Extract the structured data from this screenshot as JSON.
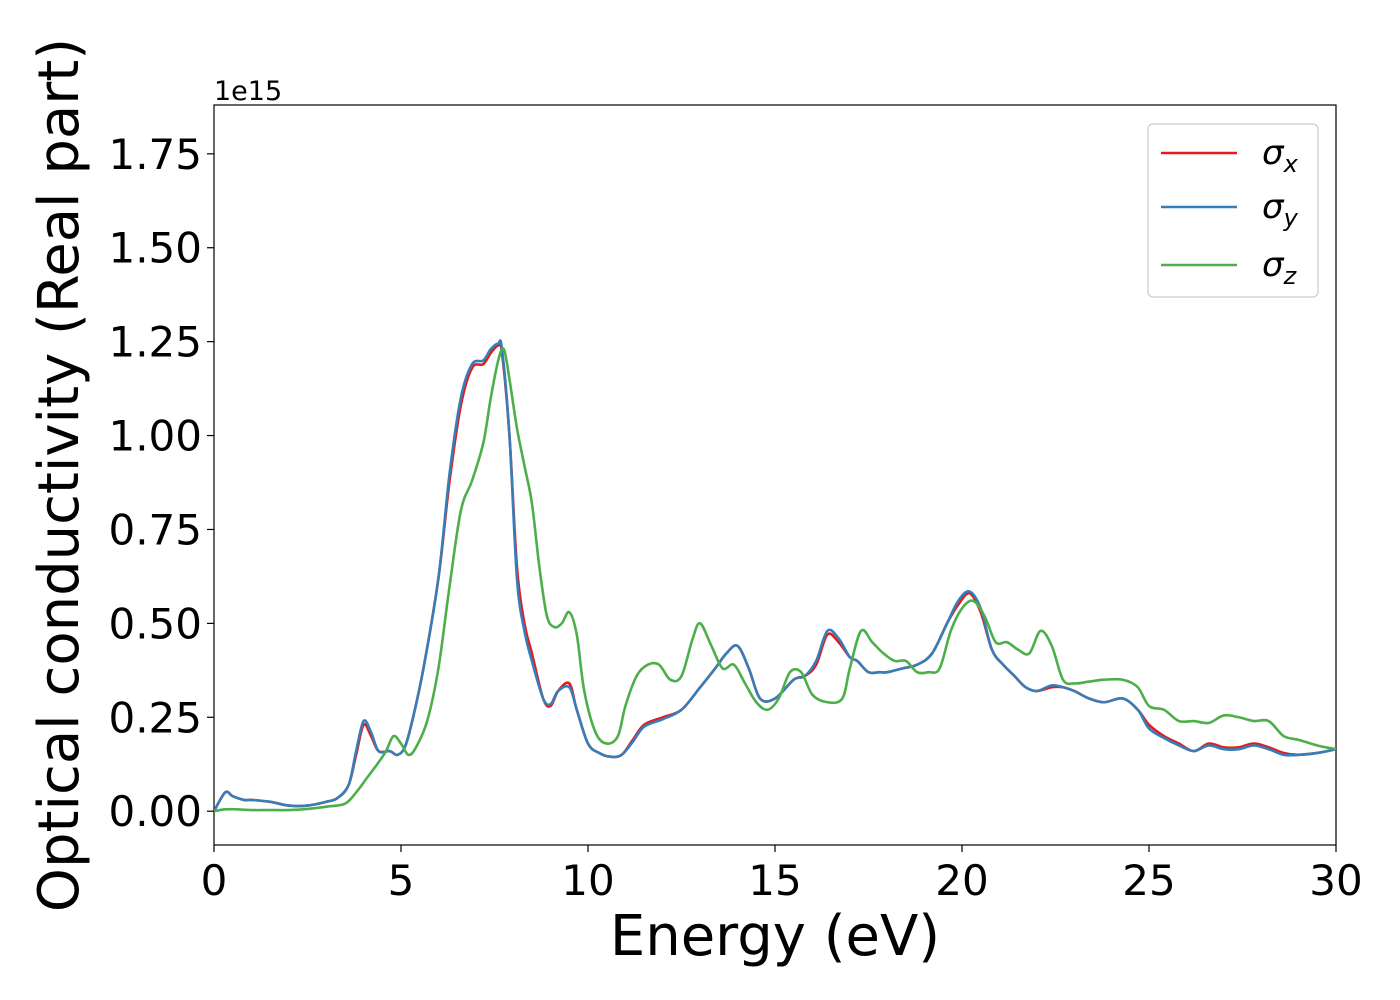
{
  "chart_data": {
    "type": "line",
    "xlabel": "Energy (eV)",
    "ylabel": "Optical conductivity (Real part)",
    "y_offset_text": "1e15",
    "xlim": [
      0,
      30
    ],
    "ylim": [
      -0.09,
      1.88
    ],
    "y_scale_factor": 1000000000000000.0,
    "grid": false,
    "legend_position": "top-right",
    "x_ticks": [
      0,
      5,
      10,
      15,
      20,
      25,
      30
    ],
    "x_tick_labels": [
      "0",
      "5",
      "10",
      "15",
      "20",
      "25",
      "30"
    ],
    "y_ticks": [
      0.0,
      0.25,
      0.5,
      0.75,
      1.0,
      1.25,
      1.5,
      1.75
    ],
    "y_tick_labels": [
      "0.00",
      "0.25",
      "0.50",
      "0.75",
      "1.00",
      "1.25",
      "1.50",
      "1.75"
    ],
    "series": [
      {
        "name": "σx",
        "legend_base": "σ",
        "legend_sub": "x",
        "color": "#e41a1c",
        "x": [
          0,
          0.3,
          0.5,
          0.8,
          1.0,
          1.5,
          2.0,
          2.5,
          3.0,
          3.3,
          3.6,
          3.8,
          4.0,
          4.2,
          4.4,
          4.7,
          4.9,
          5.1,
          5.3,
          5.6,
          6.0,
          6.3,
          6.6,
          6.9,
          7.2,
          7.4,
          7.6,
          7.7,
          7.9,
          8.1,
          8.3,
          8.5,
          8.8,
          9.0,
          9.2,
          9.5,
          9.7,
          10.0,
          10.3,
          10.6,
          10.9,
          11.2,
          11.5,
          12.0,
          12.5,
          13.0,
          13.4,
          13.7,
          14.0,
          14.3,
          14.6,
          15.0,
          15.5,
          15.8,
          16.1,
          16.4,
          16.7,
          17.0,
          17.2,
          17.5,
          17.8,
          18.0,
          18.4,
          18.8,
          19.2,
          19.6,
          19.9,
          20.2,
          20.5,
          20.8,
          21.1,
          21.4,
          21.7,
          22.0,
          22.4,
          22.7,
          23.0,
          23.4,
          23.8,
          24.3,
          24.7,
          25.0,
          25.4,
          25.8,
          26.2,
          26.6,
          27.0,
          27.4,
          27.8,
          28.2,
          28.6,
          29.0,
          29.5,
          30.0
        ],
        "y": [
          0.0,
          0.05,
          0.04,
          0.03,
          0.03,
          0.025,
          0.015,
          0.015,
          0.025,
          0.035,
          0.07,
          0.15,
          0.23,
          0.2,
          0.16,
          0.16,
          0.15,
          0.17,
          0.24,
          0.38,
          0.62,
          0.88,
          1.08,
          1.18,
          1.19,
          1.22,
          1.24,
          1.22,
          1.0,
          0.65,
          0.5,
          0.42,
          0.3,
          0.28,
          0.32,
          0.34,
          0.27,
          0.18,
          0.155,
          0.145,
          0.15,
          0.19,
          0.23,
          0.25,
          0.27,
          0.33,
          0.38,
          0.42,
          0.44,
          0.38,
          0.3,
          0.3,
          0.35,
          0.36,
          0.39,
          0.47,
          0.45,
          0.41,
          0.4,
          0.37,
          0.37,
          0.37,
          0.38,
          0.39,
          0.42,
          0.5,
          0.55,
          0.58,
          0.53,
          0.43,
          0.39,
          0.36,
          0.33,
          0.32,
          0.33,
          0.33,
          0.32,
          0.3,
          0.29,
          0.3,
          0.27,
          0.23,
          0.2,
          0.18,
          0.16,
          0.18,
          0.17,
          0.17,
          0.18,
          0.17,
          0.155,
          0.15,
          0.155,
          0.165
        ]
      },
      {
        "name": "σy",
        "legend_base": "σ",
        "legend_sub": "y",
        "color": "#377eb8",
        "x": [
          0,
          0.3,
          0.5,
          0.8,
          1.0,
          1.5,
          2.0,
          2.5,
          3.0,
          3.3,
          3.6,
          3.8,
          4.0,
          4.2,
          4.4,
          4.7,
          4.9,
          5.1,
          5.3,
          5.6,
          6.0,
          6.3,
          6.6,
          6.9,
          7.2,
          7.4,
          7.6,
          7.7,
          7.9,
          8.1,
          8.3,
          8.5,
          8.8,
          9.0,
          9.2,
          9.5,
          9.7,
          10.0,
          10.3,
          10.6,
          10.9,
          11.2,
          11.5,
          12.0,
          12.5,
          13.0,
          13.4,
          13.7,
          14.0,
          14.3,
          14.6,
          15.0,
          15.5,
          15.8,
          16.1,
          16.4,
          16.7,
          17.0,
          17.2,
          17.5,
          17.8,
          18.0,
          18.4,
          18.8,
          19.2,
          19.6,
          19.9,
          20.2,
          20.5,
          20.8,
          21.1,
          21.4,
          21.7,
          22.0,
          22.4,
          22.7,
          23.0,
          23.4,
          23.8,
          24.3,
          24.7,
          25.0,
          25.4,
          25.8,
          26.2,
          26.6,
          27.0,
          27.4,
          27.8,
          28.2,
          28.6,
          29.0,
          29.5,
          30.0
        ],
        "y": [
          0.0,
          0.05,
          0.04,
          0.03,
          0.03,
          0.025,
          0.015,
          0.015,
          0.025,
          0.035,
          0.07,
          0.16,
          0.24,
          0.21,
          0.16,
          0.16,
          0.15,
          0.17,
          0.24,
          0.38,
          0.62,
          0.9,
          1.1,
          1.19,
          1.2,
          1.23,
          1.245,
          1.23,
          1.0,
          0.62,
          0.48,
          0.4,
          0.3,
          0.285,
          0.32,
          0.33,
          0.27,
          0.18,
          0.155,
          0.145,
          0.15,
          0.185,
          0.225,
          0.245,
          0.27,
          0.33,
          0.38,
          0.42,
          0.44,
          0.38,
          0.3,
          0.3,
          0.35,
          0.36,
          0.4,
          0.48,
          0.46,
          0.41,
          0.4,
          0.37,
          0.37,
          0.37,
          0.38,
          0.39,
          0.42,
          0.5,
          0.56,
          0.585,
          0.54,
          0.43,
          0.39,
          0.36,
          0.33,
          0.32,
          0.335,
          0.33,
          0.32,
          0.3,
          0.29,
          0.3,
          0.27,
          0.22,
          0.195,
          0.175,
          0.16,
          0.175,
          0.165,
          0.165,
          0.175,
          0.165,
          0.15,
          0.15,
          0.155,
          0.165
        ]
      },
      {
        "name": "σz",
        "legend_base": "σ",
        "legend_sub": "z",
        "color": "#4daf4a",
        "x": [
          0,
          0.3,
          0.6,
          1.0,
          1.5,
          2.0,
          2.5,
          3.0,
          3.5,
          3.8,
          4.1,
          4.4,
          4.6,
          4.8,
          5.0,
          5.2,
          5.4,
          5.7,
          6.0,
          6.3,
          6.6,
          6.9,
          7.2,
          7.4,
          7.6,
          7.75,
          7.9,
          8.1,
          8.3,
          8.5,
          8.7,
          8.9,
          9.1,
          9.3,
          9.5,
          9.7,
          9.9,
          10.2,
          10.5,
          10.8,
          11.0,
          11.3,
          11.6,
          11.9,
          12.2,
          12.5,
          12.8,
          13.0,
          13.3,
          13.6,
          13.9,
          14.2,
          14.5,
          14.8,
          15.1,
          15.4,
          15.7,
          16.0,
          16.4,
          16.8,
          17.0,
          17.3,
          17.6,
          17.9,
          18.2,
          18.5,
          18.8,
          19.1,
          19.4,
          19.7,
          20.0,
          20.3,
          20.6,
          20.9,
          21.2,
          21.5,
          21.8,
          22.1,
          22.4,
          22.7,
          23.0,
          23.4,
          23.8,
          24.3,
          24.7,
          25.0,
          25.4,
          25.8,
          26.2,
          26.6,
          27.0,
          27.4,
          27.8,
          28.2,
          28.6,
          29.0,
          29.5,
          30.0
        ],
        "y": [
          0.0,
          0.005,
          0.005,
          0.003,
          0.003,
          0.003,
          0.006,
          0.012,
          0.02,
          0.05,
          0.09,
          0.13,
          0.16,
          0.2,
          0.18,
          0.15,
          0.17,
          0.24,
          0.38,
          0.6,
          0.8,
          0.88,
          0.98,
          1.1,
          1.2,
          1.23,
          1.15,
          1.02,
          0.92,
          0.82,
          0.65,
          0.52,
          0.49,
          0.5,
          0.53,
          0.47,
          0.32,
          0.21,
          0.18,
          0.2,
          0.28,
          0.36,
          0.39,
          0.39,
          0.35,
          0.36,
          0.46,
          0.5,
          0.44,
          0.38,
          0.39,
          0.34,
          0.29,
          0.27,
          0.3,
          0.37,
          0.37,
          0.31,
          0.29,
          0.3,
          0.38,
          0.48,
          0.45,
          0.42,
          0.4,
          0.4,
          0.37,
          0.37,
          0.38,
          0.48,
          0.54,
          0.56,
          0.52,
          0.45,
          0.45,
          0.43,
          0.42,
          0.48,
          0.44,
          0.35,
          0.34,
          0.345,
          0.35,
          0.35,
          0.33,
          0.28,
          0.27,
          0.24,
          0.24,
          0.235,
          0.255,
          0.25,
          0.24,
          0.24,
          0.2,
          0.19,
          0.175,
          0.165
        ]
      }
    ]
  }
}
